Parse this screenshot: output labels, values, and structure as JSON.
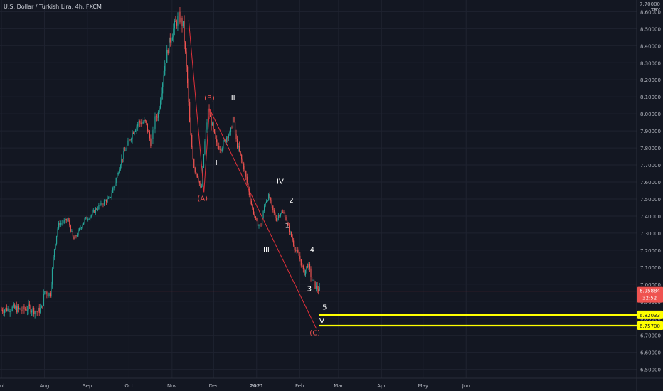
{
  "symbol_title": "U.S. Dollar / Turkish Lira, 4h, FXCM",
  "currency_label": [
    "7.70000",
    "TRY"
  ],
  "colors": {
    "background": "#131722",
    "grid": "#1f2330",
    "axis_text": "#b2b5be",
    "up": "#26a69a",
    "down": "#ef5350",
    "wave_line": "#e0313a",
    "wave_label_red": "#ef5350",
    "wave_label_white": "#ffffff",
    "current_price_line": "#7a2a30",
    "current_price_bg": "#ef5350",
    "target_line": "#ffff00",
    "target_bg": "#ffff00"
  },
  "chart_data": {
    "type": "candlestick",
    "ylim": [
      6.44,
      8.72
    ],
    "yticks": [
      "6.50000",
      "6.60000",
      "6.70000",
      "6.80000",
      "6.90000",
      "7.00000",
      "7.10000",
      "7.20000",
      "7.30000",
      "7.40000",
      "7.50000",
      "7.60000",
      "7.70000",
      "7.80000",
      "7.90000",
      "8.00000",
      "8.10000",
      "8.20000",
      "8.30000",
      "8.40000",
      "8.50000",
      "8.60000"
    ],
    "xticks": [
      {
        "label": "Jul",
        "t": 0
      },
      {
        "label": "Aug",
        "t": 31
      },
      {
        "label": "Sep",
        "t": 62
      },
      {
        "label": "Oct",
        "t": 92
      },
      {
        "label": "Nov",
        "t": 123
      },
      {
        "label": "Dec",
        "t": 153
      },
      {
        "label": "2021",
        "t": 184,
        "bold": true
      },
      {
        "label": "Feb",
        "t": 215
      },
      {
        "label": "Mar",
        "t": 243
      },
      {
        "label": "Apr",
        "t": 274
      },
      {
        "label": "May",
        "t": 304
      },
      {
        "label": "Jun",
        "t": 335
      }
    ],
    "xlim": [
      0,
      360
    ],
    "price_path": [
      [
        0,
        6.85
      ],
      [
        8,
        6.86
      ],
      [
        14,
        6.85
      ],
      [
        20,
        6.86
      ],
      [
        26,
        6.84
      ],
      [
        29,
        6.86
      ],
      [
        31,
        6.96
      ],
      [
        35,
        6.94
      ],
      [
        38,
        7.2
      ],
      [
        41,
        7.35
      ],
      [
        48,
        7.38
      ],
      [
        52,
        7.26
      ],
      [
        55,
        7.3
      ],
      [
        60,
        7.38
      ],
      [
        64,
        7.4
      ],
      [
        68,
        7.44
      ],
      [
        75,
        7.49
      ],
      [
        78,
        7.5
      ],
      [
        82,
        7.6
      ],
      [
        86,
        7.72
      ],
      [
        90,
        7.8
      ],
      [
        95,
        7.9
      ],
      [
        99,
        7.95
      ],
      [
        104,
        7.95
      ],
      [
        108,
        7.82
      ],
      [
        111,
        7.98
      ],
      [
        113,
        8.0
      ],
      [
        118,
        8.3
      ],
      [
        121,
        8.42
      ],
      [
        125,
        8.52
      ],
      [
        128,
        8.57
      ],
      [
        131,
        8.52
      ],
      [
        134,
        8.2
      ],
      [
        136,
        7.9
      ],
      [
        139,
        7.68
      ],
      [
        142,
        7.62
      ],
      [
        144,
        7.54
      ],
      [
        146,
        7.78
      ],
      [
        149,
        8.02
      ],
      [
        152,
        7.93
      ],
      [
        155,
        7.82
      ],
      [
        158,
        7.8
      ],
      [
        161,
        7.84
      ],
      [
        163,
        7.88
      ],
      [
        165,
        7.88
      ],
      [
        167,
        7.98
      ],
      [
        169,
        7.85
      ],
      [
        172,
        7.76
      ],
      [
        175,
        7.68
      ],
      [
        178,
        7.55
      ],
      [
        181,
        7.44
      ],
      [
        184,
        7.36
      ],
      [
        187,
        7.34
      ],
      [
        190,
        7.48
      ],
      [
        193,
        7.52
      ],
      [
        195,
        7.45
      ],
      [
        198,
        7.38
      ],
      [
        201,
        7.42
      ],
      [
        204,
        7.42
      ],
      [
        206,
        7.35
      ],
      [
        209,
        7.28
      ],
      [
        212,
        7.2
      ],
      [
        215,
        7.16
      ],
      [
        218,
        7.06
      ],
      [
        221,
        7.12
      ],
      [
        224,
        7.02
      ],
      [
        227,
        6.98
      ],
      [
        230,
        6.96
      ]
    ],
    "annotations": [
      {
        "text": "(B)",
        "t": 150,
        "y": 8.08,
        "color": "red"
      },
      {
        "text": "II",
        "t": 167,
        "y": 8.08,
        "color": "white"
      },
      {
        "text": "I",
        "t": 155,
        "y": 7.7,
        "color": "white"
      },
      {
        "text": "(A)",
        "t": 145,
        "y": 7.49,
        "color": "red"
      },
      {
        "text": "IV",
        "t": 201,
        "y": 7.59,
        "color": "white"
      },
      {
        "text": "2",
        "t": 209,
        "y": 7.48,
        "color": "white"
      },
      {
        "text": "1",
        "t": 206,
        "y": 7.33,
        "color": "white"
      },
      {
        "text": "III",
        "t": 191,
        "y": 7.19,
        "color": "white"
      },
      {
        "text": "4",
        "t": 224,
        "y": 7.19,
        "color": "white"
      },
      {
        "text": "3",
        "t": 222,
        "y": 6.96,
        "color": "white"
      },
      {
        "text": "5",
        "t": 233,
        "y": 6.85,
        "color": "white"
      },
      {
        "text": "V",
        "t": 231,
        "y": 6.77,
        "color": "white"
      },
      {
        "text": "(C)",
        "t": 226,
        "y": 6.7,
        "color": "red"
      }
    ],
    "wave_lines": [
      [
        [
          135,
          8.55
        ],
        [
          146,
          7.54
        ]
      ],
      [
        [
          146,
          7.54
        ],
        [
          150,
          8.03
        ]
      ],
      [
        [
          150,
          8.03
        ],
        [
          227,
          6.74
        ]
      ]
    ],
    "current_price": {
      "value": 6.95884,
      "label": "6.95884",
      "countdown": "32:52"
    },
    "target_levels": [
      {
        "value": 6.82033,
        "label": "6.82033"
      },
      {
        "value": 6.757,
        "label": "6.75700"
      }
    ],
    "target_line_start_t": 229
  }
}
